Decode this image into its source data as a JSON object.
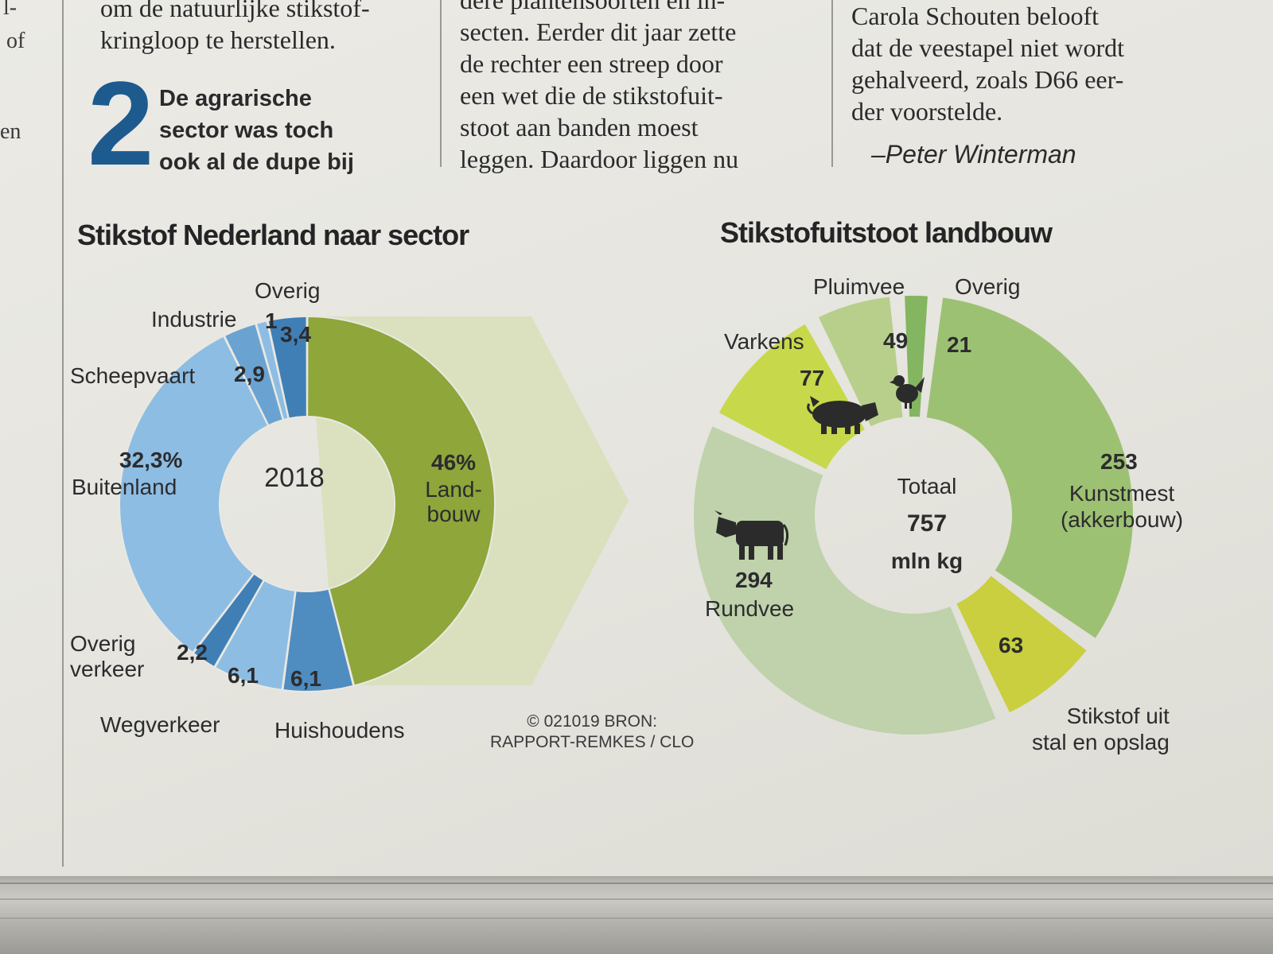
{
  "article": {
    "left_fragments": [
      "l-",
      "of",
      "en"
    ],
    "col1_lines": [
      "om de natuurlijke stikstof-",
      "kringloop te herstellen."
    ],
    "callout_number": "2",
    "callout_lines": [
      "De agrarische",
      "sector was toch",
      "ook al de dupe bij"
    ],
    "col2_lines": [
      "dere plantensoorten en in-",
      "secten. Eerder dit jaar zette",
      "de rechter een streep door",
      "een wet die de stikstofuit-",
      "stoot aan banden moest",
      "leggen. Daardoor liggen nu"
    ],
    "col3_lines": [
      "Carola Schouten belooft",
      "dat de veestapel niet wordt",
      "gehalveerd, zoals D66 eer-",
      "der voorstelde."
    ],
    "byline": "–Peter Winterman"
  },
  "colors": {
    "blue_light": "#8dbde3",
    "blue_mid": "#6aa3d1",
    "blue_dark": "#3f7fb6",
    "green_dark": "#8ea63a",
    "green_bg": "#d8dfb9",
    "green_light": "#b5cf8c",
    "green_pale": "#bcd3a6",
    "yellow_green": "#c2d23e",
    "green_mid": "#8fbd6c"
  },
  "source": {
    "line1": "© 021019 BRON:",
    "line2": "RAPPORT-REMKES / CLO"
  },
  "chart_data": [
    {
      "type": "pie",
      "variant": "donut",
      "title": "Stikstof Nederland naar sector",
      "center_label": "2018",
      "unit": "%",
      "slices": [
        {
          "key": "landbouw",
          "label": "Land-\nbouw",
          "value": 46,
          "value_label": "46%",
          "color": "#8ea63a"
        },
        {
          "key": "huishoudens",
          "label": "Huishoudens",
          "value": 6.1,
          "value_label": "6,1",
          "color": "#4f8cc0"
        },
        {
          "key": "wegverkeer",
          "label": "Wegverkeer",
          "value": 6.1,
          "value_label": "6,1",
          "color": "#8dbde3"
        },
        {
          "key": "overig_verkeer",
          "label": "Overig\nverkeer",
          "value": 2.2,
          "value_label": "2,2",
          "color": "#3f7fb6"
        },
        {
          "key": "buitenland",
          "label": "Buitenland",
          "value": 32.3,
          "value_label": "32,3%",
          "color": "#8dbde3"
        },
        {
          "key": "scheepvaart",
          "label": "Scheepvaart",
          "value": 2.9,
          "value_label": "2,9",
          "color": "#6aa3d1"
        },
        {
          "key": "industrie",
          "label": "Industrie",
          "value": 1,
          "value_label": "1",
          "color": "#8dbde3"
        },
        {
          "key": "overig",
          "label": "Overig",
          "value": 3.4,
          "value_label": "3,4",
          "color": "#3f7fb6"
        }
      ]
    },
    {
      "type": "pie",
      "variant": "donut",
      "title": "Stikstofuitstoot landbouw",
      "center_label": [
        "Totaal",
        "757",
        "mln kg"
      ],
      "unit": "mln kg",
      "total": 757,
      "slices": [
        {
          "key": "kunstmest",
          "label": "Kunstmest\n(akkerbouw)",
          "value": 253,
          "value_label": "253",
          "color": "#9dc173"
        },
        {
          "key": "stal",
          "label": "Stikstof uit\nstal en opslag",
          "value": 63,
          "value_label": "63",
          "color": "#c9cf3e"
        },
        {
          "key": "rundvee",
          "label": "Rundvee",
          "value": 294,
          "value_label": "294",
          "color": "#bfd2ab",
          "icon": "cow-icon"
        },
        {
          "key": "varkens",
          "label": "Varkens",
          "value": 77,
          "value_label": "77",
          "color": "#c7d84a",
          "icon": "pig-icon"
        },
        {
          "key": "pluimvee",
          "label": "Pluimvee",
          "value": 49,
          "value_label": "49",
          "color": "#b7cf8b",
          "icon": "chicken-icon"
        },
        {
          "key": "overig",
          "label": "Overig",
          "value": 21,
          "value_label": "21",
          "color": "#84b560"
        }
      ]
    }
  ]
}
